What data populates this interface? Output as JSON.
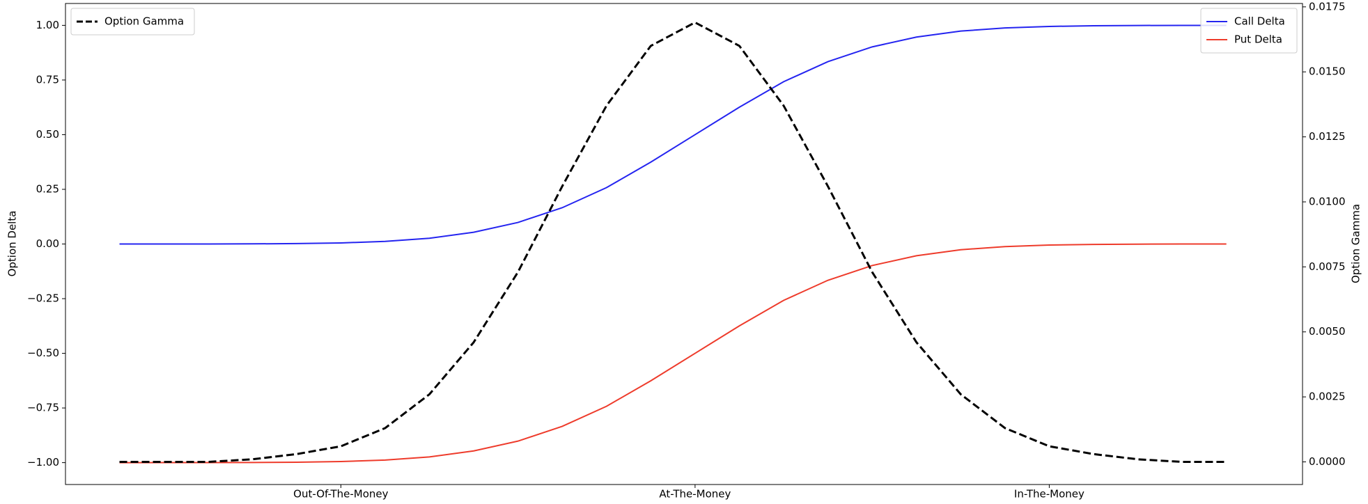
{
  "chart_data": {
    "type": "line",
    "y_label": "Option Delta",
    "y2_label": "Option Gamma",
    "x": [
      35,
      40,
      45,
      50,
      55,
      60,
      65,
      70,
      75,
      80,
      85,
      90,
      95,
      100,
      105,
      110,
      115,
      120,
      125,
      130,
      135,
      140,
      145,
      150,
      155,
      160
    ],
    "xlim": [
      28.9,
      168.6
    ],
    "xticks": [
      {
        "value": 60,
        "label": "Out-Of-The-Money"
      },
      {
        "value": 100,
        "label": "At-The-Money"
      },
      {
        "value": 140,
        "label": "In-The-Money"
      }
    ],
    "ylim": [
      -1.1,
      1.1
    ],
    "yticks": [
      {
        "value": -1,
        "label": "−1.00"
      },
      {
        "value": -0.75,
        "label": "−0.75"
      },
      {
        "value": -0.5,
        "label": "−0.50"
      },
      {
        "value": -0.25,
        "label": "−0.25"
      },
      {
        "value": 0,
        "label": "0.00"
      },
      {
        "value": 0.25,
        "label": "0.25"
      },
      {
        "value": 0.5,
        "label": "0.50"
      },
      {
        "value": 0.75,
        "label": "0.75"
      },
      {
        "value": 1,
        "label": "1.00"
      }
    ],
    "y2lim": [
      -0.00087,
      0.01763
    ],
    "y2ticks": [
      {
        "value": 0,
        "label": "0.0000"
      },
      {
        "value": 0.0025,
        "label": "0.0025"
      },
      {
        "value": 0.005,
        "label": "0.0050"
      },
      {
        "value": 0.0075,
        "label": "0.0075"
      },
      {
        "value": 0.01,
        "label": "0.0100"
      },
      {
        "value": 0.0125,
        "label": "0.0125"
      },
      {
        "value": 0.015,
        "label": "0.0150"
      },
      {
        "value": 0.0175,
        "label": "0.0175"
      }
    ],
    "legend_y": "upper right",
    "legend_y2": "upper left",
    "series": [
      {
        "name": "Call Delta",
        "color": "#2424f0",
        "dash": "solid",
        "axis": "y",
        "values": [
          0.0,
          0.0001,
          0.0002,
          0.0006,
          0.0019,
          0.0049,
          0.0119,
          0.0262,
          0.0537,
          0.0985,
          0.166,
          0.2578,
          0.3745,
          0.5,
          0.6255,
          0.7422,
          0.834,
          0.9015,
          0.9463,
          0.9738,
          0.9881,
          0.9951,
          0.9981,
          0.9994,
          0.9998,
          0.9999
        ]
      },
      {
        "name": "Put Delta",
        "color": "#ee3b2b",
        "dash": "solid",
        "axis": "y",
        "values": [
          -1.0,
          -0.9999,
          -0.9998,
          -0.9994,
          -0.9981,
          -0.9951,
          -0.9881,
          -0.9738,
          -0.9463,
          -0.9015,
          -0.834,
          -0.7422,
          -0.6255,
          -0.5,
          -0.3745,
          -0.2578,
          -0.166,
          -0.0985,
          -0.0537,
          -0.0262,
          -0.0119,
          -0.0049,
          -0.0019,
          -0.0006,
          -0.0002,
          -0.0001
        ]
      },
      {
        "name": "Option Gamma",
        "color": "#000000",
        "dash": "dashed",
        "axis": "y2",
        "values": [
          0.0,
          0.0,
          0.0,
          0.0001,
          0.0003,
          0.0006,
          0.0013,
          0.0026,
          0.0046,
          0.0073,
          0.0106,
          0.0137,
          0.016,
          0.0169,
          0.016,
          0.0137,
          0.0106,
          0.0073,
          0.0046,
          0.0026,
          0.0013,
          0.0006,
          0.0003,
          0.0001,
          0.0,
          0.0
        ]
      }
    ]
  }
}
